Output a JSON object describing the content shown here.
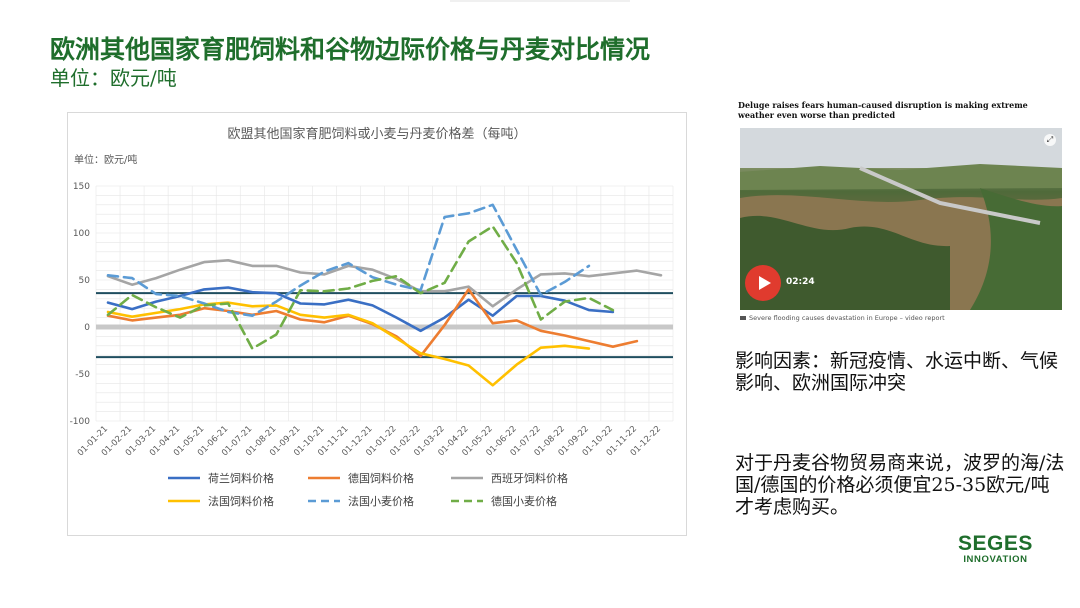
{
  "slide": {
    "title": "欧洲其他国家育肥饲料和谷物边际价格与丹麦对比情况",
    "subtitle": "单位：欧元/吨",
    "factors_text": "影响因素：新冠疫情、水运中断、气候影响、欧洲国际冲突",
    "advice_text": "对于丹麦谷物贸易商来说，波罗的海/法国/德国的价格必须便宜25-35欧元/吨才考虑购买。"
  },
  "news": {
    "headline": "Deluge raises fears human-caused disruption is making extreme weather even worse than predicted",
    "duration": "02:24",
    "caption": "Severe flooding causes devastation in Europe – video report",
    "play_icon": "play-icon",
    "expand_icon": "expand-icon"
  },
  "logo": {
    "main": "SEGES",
    "sub": "INNOVATION"
  },
  "chart_data": {
    "type": "line",
    "title": "欧盟其他国家育肥饲料或小麦与丹麦价格差（每吨）",
    "unit_label": "单位：欧元/吨",
    "ylim": [
      -100,
      150
    ],
    "yticks": [
      -100,
      -50,
      0,
      50,
      100,
      150
    ],
    "grid": true,
    "legend_position": "bottom",
    "categories": [
      "01-01-21",
      "01-02-21",
      "01-03-21",
      "01-04-21",
      "01-05-21",
      "01-06-21",
      "01-07-21",
      "01-08-21",
      "01-09-21",
      "01-10-21",
      "01-11-21",
      "01-12-21",
      "01-01-22",
      "01-02-22",
      "01-03-22",
      "01-04-22",
      "01-05-22",
      "01-06-22",
      "01-07-22",
      "01-08-22",
      "01-09-22",
      "01-10-22",
      "01-11-22",
      "01-12-22"
    ],
    "reference_lines": [
      {
        "value": 36,
        "color": "#1f4e5f"
      },
      {
        "value": -32,
        "color": "#1f4e5f"
      },
      {
        "value": 0,
        "color": "#c8c8c8"
      }
    ],
    "series": [
      {
        "name": "荷兰饲料价格",
        "color": "#3a6fc4",
        "dash": "solid",
        "values": [
          26,
          19,
          27,
          33,
          40,
          42,
          37,
          36,
          25,
          24,
          29,
          23,
          10,
          -4,
          10,
          29,
          12,
          33,
          33,
          28,
          18,
          16,
          null,
          null
        ]
      },
      {
        "name": "德国饲料价格",
        "color": "#ed7d31",
        "dash": "solid",
        "values": [
          12,
          7,
          10,
          13,
          20,
          17,
          13,
          17,
          8,
          5,
          12,
          3,
          -10,
          -31,
          2,
          40,
          4,
          7,
          -4,
          -9,
          -15,
          -21,
          -15,
          null
        ]
      },
      {
        "name": "西班牙饲料价格",
        "color": "#a5a5a5",
        "dash": "solid",
        "values": [
          54,
          45,
          52,
          61,
          69,
          71,
          65,
          65,
          58,
          56,
          65,
          61,
          51,
          38,
          38,
          43,
          22,
          40,
          56,
          57,
          54,
          57,
          60,
          55
        ]
      },
      {
        "name": "法国饲料价格",
        "color": "#ffc000",
        "dash": "solid",
        "values": [
          16,
          11,
          15,
          19,
          24,
          26,
          22,
          23,
          13,
          10,
          13,
          4,
          -12,
          -28,
          -34,
          -41,
          -62,
          -40,
          -22,
          -20,
          -23,
          null,
          null,
          null
        ]
      },
      {
        "name": "法国小麦价格",
        "color": "#5b9bd5",
        "dash": "dashed",
        "values": [
          55,
          52,
          35,
          33,
          25,
          16,
          12,
          27,
          44,
          59,
          68,
          53,
          45,
          39,
          117,
          121,
          130,
          82,
          34,
          48,
          65,
          null,
          null,
          null
        ]
      },
      {
        "name": "德国小麦价格",
        "color": "#70ad47",
        "dash": "dashed",
        "values": [
          13,
          34,
          21,
          10,
          23,
          25,
          -23,
          -8,
          39,
          38,
          41,
          49,
          54,
          36,
          47,
          91,
          107,
          68,
          8,
          27,
          31,
          18,
          null,
          null
        ]
      }
    ]
  }
}
